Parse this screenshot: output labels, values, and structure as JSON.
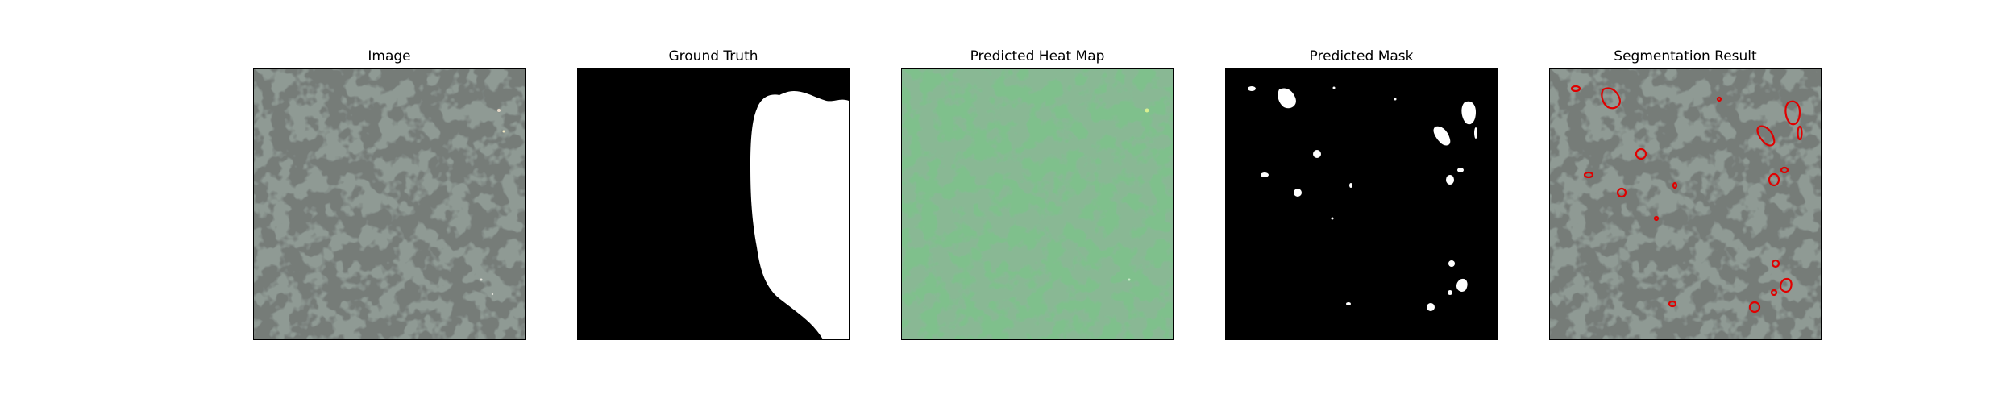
{
  "figure": {
    "panels": [
      {
        "title": "Image"
      },
      {
        "title": "Ground Truth"
      },
      {
        "title": "Predicted Heat Map"
      },
      {
        "title": "Predicted Mask"
      },
      {
        "title": "Segmentation Result"
      }
    ]
  },
  "colors": {
    "texture_base": "#8f9a94",
    "texture_spot": "#2f3331",
    "heatmap_base": "#7fc08c",
    "heatmap_spot": "#3f7a4c",
    "mask_foreground": "#ffffff",
    "mask_background": "#000000",
    "contour": "#e00000"
  }
}
